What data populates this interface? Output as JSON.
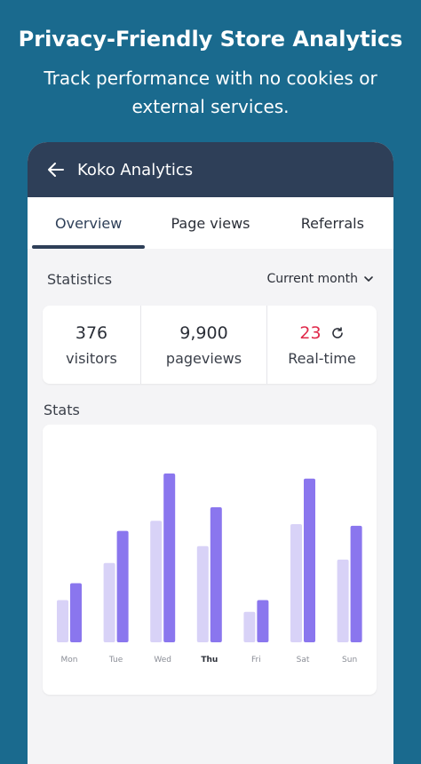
{
  "hero": {
    "title": "Privacy-Friendly Store Analytics",
    "subtitle_line1": "Track performance with no cookies or",
    "subtitle_line2": "external services."
  },
  "appbar": {
    "title": "Koko Analytics",
    "back_icon": "arrow-left-icon"
  },
  "tabs": [
    {
      "label": "Overview",
      "active": true
    },
    {
      "label": "Page views",
      "active": false
    },
    {
      "label": "Referrals",
      "active": false
    }
  ],
  "statistics": {
    "title": "Statistics",
    "period": "Current month",
    "visitors_value": "376",
    "visitors_label": "visitors",
    "pageviews_value": "9,900",
    "pageviews_label": "pageviews",
    "realtime_value": "23",
    "realtime_label": "Real-time"
  },
  "stats_section": {
    "title": "Stats"
  },
  "colors": {
    "brand_bg": "#1a6a8e",
    "appbar": "#2e3f58",
    "bar_light": "#d8d2f7",
    "bar_dark": "#8a76ee",
    "realtime": "#e0294a"
  },
  "chart_data": {
    "type": "bar",
    "categories": [
      "Mon",
      "Tue",
      "Wed",
      "Thu",
      "Fri",
      "Sat",
      "Sun"
    ],
    "highlighted_category": "Thu",
    "series": [
      {
        "values": [
          25,
          47,
          72,
          57,
          18,
          70,
          49
        ]
      },
      {
        "values": [
          35,
          66,
          100,
          80,
          25,
          97,
          69
        ]
      }
    ],
    "ylim": [
      0,
      100
    ],
    "grid": false,
    "legend": "none"
  }
}
